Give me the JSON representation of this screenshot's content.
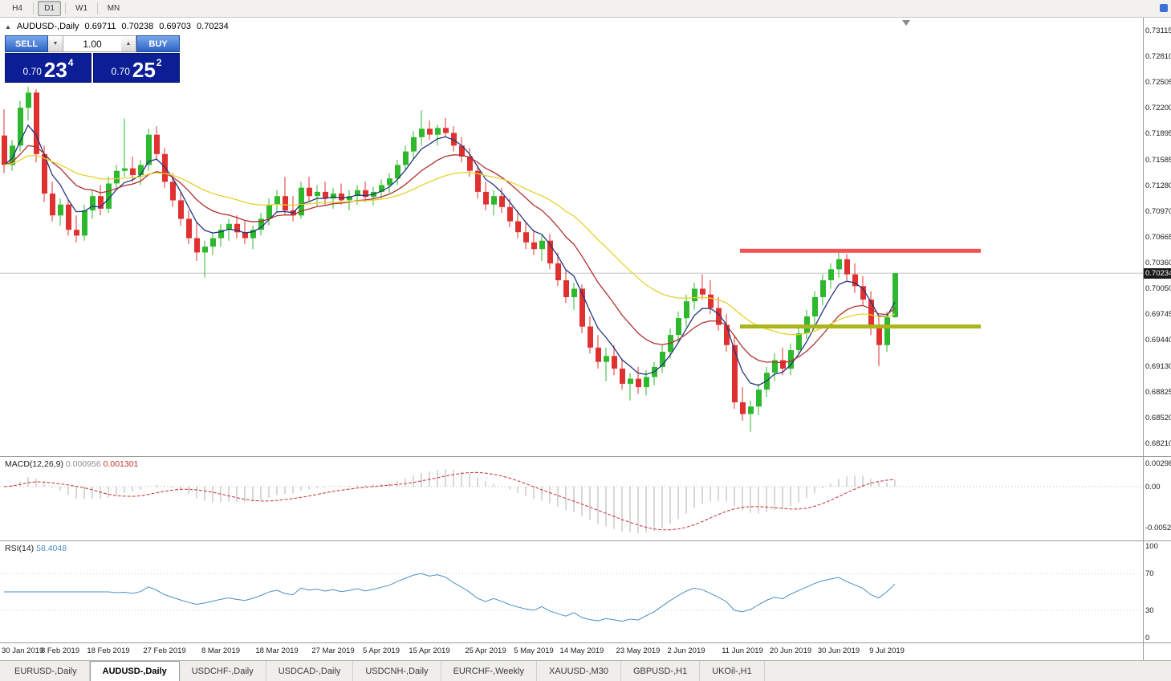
{
  "icons": {
    "collapse_arrow": "▲",
    "spinner_up": "▲",
    "spinner_down": "▼"
  },
  "toolbar": {
    "timeframes": [
      "H4",
      "D1",
      "W1",
      "MN"
    ],
    "active": "D1"
  },
  "chart": {
    "symbol": "AUDUSD-,Daily",
    "ohlc": {
      "open": "0.69711",
      "high": "0.70238",
      "low": "0.69703",
      "close": "0.70234"
    },
    "current_price": "0.70234",
    "price_axis": [
      "0.73115",
      "0.72810",
      "0.72505",
      "0.72200",
      "0.71895",
      "0.71585",
      "0.71280",
      "0.70970",
      "0.70665",
      "0.70360",
      "0.70050",
      "0.69745",
      "0.69440",
      "0.69130",
      "0.68825",
      "0.68520",
      "0.68210"
    ]
  },
  "trade_panel": {
    "sell_label": "SELL",
    "buy_label": "BUY",
    "volume": "1.00",
    "sell_price": {
      "small": "0.70",
      "big": "23",
      "sup": "4"
    },
    "buy_price": {
      "small": "0.70",
      "big": "25",
      "sup": "2"
    }
  },
  "chart_data": {
    "type": "candlestick",
    "symbol": "AUDUSD",
    "timeframe": "Daily",
    "x_offset": 5,
    "x_spacing": 10,
    "ylim": [
      0.6806,
      0.7327
    ],
    "colors": {
      "bull": "#2eb82e",
      "bear": "#e03131"
    },
    "candles": [
      [
        0.7187,
        0.7218,
        0.7142,
        0.7152
      ],
      [
        0.7152,
        0.7182,
        0.7145,
        0.7175
      ],
      [
        0.7175,
        0.7228,
        0.7168,
        0.722
      ],
      [
        0.722,
        0.7245,
        0.7205,
        0.7238
      ],
      [
        0.7238,
        0.7242,
        0.7155,
        0.7165
      ],
      [
        0.7165,
        0.7175,
        0.7108,
        0.7118
      ],
      [
        0.7118,
        0.7132,
        0.7085,
        0.7092
      ],
      [
        0.7092,
        0.7112,
        0.708,
        0.7105
      ],
      [
        0.7105,
        0.7112,
        0.7068,
        0.7075
      ],
      [
        0.7075,
        0.7092,
        0.706,
        0.7068
      ],
      [
        0.7068,
        0.7105,
        0.7062,
        0.7098
      ],
      [
        0.7098,
        0.7122,
        0.7088,
        0.7115
      ],
      [
        0.7115,
        0.7128,
        0.7092,
        0.71
      ],
      [
        0.71,
        0.7138,
        0.7095,
        0.713
      ],
      [
        0.713,
        0.7152,
        0.7122,
        0.7145
      ],
      [
        0.7145,
        0.7207,
        0.7138,
        0.7148
      ],
      [
        0.7148,
        0.7162,
        0.7132,
        0.714
      ],
      [
        0.714,
        0.7158,
        0.7128,
        0.7152
      ],
      [
        0.7152,
        0.7195,
        0.7145,
        0.7188
      ],
      [
        0.7188,
        0.7198,
        0.7158,
        0.7165
      ],
      [
        0.7165,
        0.7172,
        0.7125,
        0.7132
      ],
      [
        0.7132,
        0.7142,
        0.7102,
        0.711
      ],
      [
        0.711,
        0.712,
        0.708,
        0.7088
      ],
      [
        0.7088,
        0.7098,
        0.7058,
        0.7065
      ],
      [
        0.7065,
        0.7085,
        0.7038,
        0.7048
      ],
      [
        0.7048,
        0.7062,
        0.7018,
        0.7055
      ],
      [
        0.7055,
        0.7072,
        0.7045,
        0.7065
      ],
      [
        0.7065,
        0.7082,
        0.7055,
        0.7075
      ],
      [
        0.7075,
        0.7088,
        0.7062,
        0.7082
      ],
      [
        0.7082,
        0.7092,
        0.7065,
        0.7072
      ],
      [
        0.7072,
        0.7085,
        0.7058,
        0.7065
      ],
      [
        0.7065,
        0.708,
        0.7052,
        0.7075
      ],
      [
        0.7075,
        0.7095,
        0.7068,
        0.7088
      ],
      [
        0.7088,
        0.7112,
        0.708,
        0.7105
      ],
      [
        0.7105,
        0.7122,
        0.7095,
        0.7115
      ],
      [
        0.7115,
        0.7138,
        0.7092,
        0.7098
      ],
      [
        0.7098,
        0.7115,
        0.7085,
        0.7092
      ],
      [
        0.7092,
        0.7132,
        0.7088,
        0.7125
      ],
      [
        0.7125,
        0.7138,
        0.7108,
        0.7115
      ],
      [
        0.7115,
        0.7128,
        0.7102,
        0.712
      ],
      [
        0.712,
        0.7132,
        0.7105,
        0.7112
      ],
      [
        0.7112,
        0.7125,
        0.71,
        0.7118
      ],
      [
        0.7118,
        0.713,
        0.7105,
        0.711
      ],
      [
        0.711,
        0.7122,
        0.7098,
        0.7115
      ],
      [
        0.7115,
        0.7128,
        0.7105,
        0.7122
      ],
      [
        0.7122,
        0.7132,
        0.7108,
        0.7114
      ],
      [
        0.7114,
        0.7126,
        0.7104,
        0.712
      ],
      [
        0.712,
        0.7135,
        0.7112,
        0.7128
      ],
      [
        0.7128,
        0.7142,
        0.7118,
        0.7136
      ],
      [
        0.7136,
        0.7158,
        0.7128,
        0.7152
      ],
      [
        0.7152,
        0.7175,
        0.7145,
        0.7168
      ],
      [
        0.7168,
        0.7192,
        0.7158,
        0.7185
      ],
      [
        0.7185,
        0.7217,
        0.7175,
        0.7195
      ],
      [
        0.7195,
        0.7205,
        0.7182,
        0.7188
      ],
      [
        0.7188,
        0.72,
        0.7175,
        0.7196
      ],
      [
        0.7196,
        0.7208,
        0.7185,
        0.719
      ],
      [
        0.719,
        0.7198,
        0.7168,
        0.7175
      ],
      [
        0.7175,
        0.7185,
        0.7155,
        0.7162
      ],
      [
        0.7162,
        0.7172,
        0.7138,
        0.7145
      ],
      [
        0.7145,
        0.7152,
        0.7112,
        0.712
      ],
      [
        0.712,
        0.7132,
        0.7098,
        0.7105
      ],
      [
        0.7105,
        0.7122,
        0.7092,
        0.7115
      ],
      [
        0.7115,
        0.7125,
        0.7095,
        0.7102
      ],
      [
        0.7102,
        0.7112,
        0.7078,
        0.7085
      ],
      [
        0.7085,
        0.7098,
        0.7065,
        0.7072
      ],
      [
        0.7072,
        0.7085,
        0.7052,
        0.706
      ],
      [
        0.706,
        0.7075,
        0.7045,
        0.7052
      ],
      [
        0.7052,
        0.7068,
        0.7038,
        0.7062
      ],
      [
        0.7062,
        0.707,
        0.7028,
        0.7035
      ],
      [
        0.7035,
        0.7048,
        0.7008,
        0.7015
      ],
      [
        0.7015,
        0.7028,
        0.6988,
        0.6995
      ],
      [
        0.6995,
        0.7012,
        0.698,
        0.7005
      ],
      [
        0.7005,
        0.701,
        0.6952,
        0.696
      ],
      [
        0.696,
        0.6972,
        0.6928,
        0.6935
      ],
      [
        0.6935,
        0.695,
        0.691,
        0.6918
      ],
      [
        0.6918,
        0.6935,
        0.6895,
        0.6925
      ],
      [
        0.6925,
        0.6938,
        0.6902,
        0.691
      ],
      [
        0.691,
        0.6922,
        0.6885,
        0.6892
      ],
      [
        0.6892,
        0.6905,
        0.6872,
        0.6898
      ],
      [
        0.6898,
        0.6912,
        0.688,
        0.6888
      ],
      [
        0.6888,
        0.6908,
        0.6878,
        0.69
      ],
      [
        0.69,
        0.6918,
        0.689,
        0.6912
      ],
      [
        0.6912,
        0.6938,
        0.6905,
        0.693
      ],
      [
        0.693,
        0.6958,
        0.6922,
        0.695
      ],
      [
        0.695,
        0.6978,
        0.694,
        0.697
      ],
      [
        0.697,
        0.6998,
        0.696,
        0.699
      ],
      [
        0.699,
        0.7012,
        0.698,
        0.7005
      ],
      [
        0.7005,
        0.7022,
        0.6992,
        0.6998
      ],
      [
        0.6998,
        0.7015,
        0.6975,
        0.6982
      ],
      [
        0.6982,
        0.6995,
        0.6955,
        0.6962
      ],
      [
        0.6962,
        0.6975,
        0.693,
        0.6938
      ],
      [
        0.6938,
        0.695,
        0.6862,
        0.687
      ],
      [
        0.687,
        0.6888,
        0.6848,
        0.6856
      ],
      [
        0.6856,
        0.6872,
        0.6835,
        0.6865
      ],
      [
        0.6865,
        0.6892,
        0.6855,
        0.6885
      ],
      [
        0.6885,
        0.6912,
        0.6876,
        0.6905
      ],
      [
        0.6905,
        0.6928,
        0.6895,
        0.692
      ],
      [
        0.692,
        0.6935,
        0.6902,
        0.691
      ],
      [
        0.691,
        0.694,
        0.6902,
        0.6932
      ],
      [
        0.6932,
        0.696,
        0.6925,
        0.6952
      ],
      [
        0.6952,
        0.698,
        0.6945,
        0.6972
      ],
      [
        0.6972,
        0.7002,
        0.6962,
        0.6995
      ],
      [
        0.6995,
        0.7022,
        0.6985,
        0.7015
      ],
      [
        0.7015,
        0.7035,
        0.7005,
        0.7028
      ],
      [
        0.7028,
        0.7049,
        0.7018,
        0.704
      ],
      [
        0.704,
        0.7046,
        0.7015,
        0.7022
      ],
      [
        0.7022,
        0.7035,
        0.7,
        0.7008
      ],
      [
        0.7008,
        0.702,
        0.6985,
        0.6992
      ],
      [
        0.6992,
        0.7002,
        0.695,
        0.6958
      ],
      [
        0.6958,
        0.6972,
        0.6913,
        0.6938
      ],
      [
        0.6938,
        0.6978,
        0.693,
        0.6971
      ],
      [
        0.69711,
        0.70238,
        0.69703,
        0.70234
      ]
    ],
    "x_labels": [
      {
        "i": 0,
        "t": "30 Jan 2019"
      },
      {
        "i": 7,
        "t": "8 Feb 2019"
      },
      {
        "i": 13,
        "t": "18 Feb 2019"
      },
      {
        "i": 20,
        "t": "27 Feb 2019"
      },
      {
        "i": 27,
        "t": "8 Mar 2019"
      },
      {
        "i": 34,
        "t": "18 Mar 2019"
      },
      {
        "i": 41,
        "t": "27 Mar 2019"
      },
      {
        "i": 47,
        "t": "5 Apr 2019"
      },
      {
        "i": 53,
        "t": "15 Apr 2019"
      },
      {
        "i": 60,
        "t": "25 Apr 2019"
      },
      {
        "i": 66,
        "t": "5 May 2019"
      },
      {
        "i": 72,
        "t": "14 May 2019"
      },
      {
        "i": 79,
        "t": "23 May 2019"
      },
      {
        "i": 85,
        "t": "2 Jun 2019"
      },
      {
        "i": 92,
        "t": "11 Jun 2019"
      },
      {
        "i": 98,
        "t": "20 Jun 2019"
      },
      {
        "i": 104,
        "t": "30 Jun 2019"
      },
      {
        "i": 110,
        "t": "9 Jul 2019"
      }
    ],
    "overlays": {
      "resistance": {
        "price": 0.705,
        "from": 92,
        "to": 122,
        "color": "#f25252"
      },
      "support": {
        "price": 0.696,
        "from": 92,
        "to": 122,
        "color": "#abb41c"
      },
      "moving_averages": [
        {
          "period": 5,
          "color": "#22357e"
        },
        {
          "period": 13,
          "color": "#b03030"
        },
        {
          "period": 30,
          "color": "#e6d22e"
        }
      ]
    }
  },
  "macd": {
    "label": "MACD(12,26,9)",
    "main_value": "0.000956",
    "signal_value": "0.001301",
    "axis": [
      "0.002984",
      "0.00",
      "-0.00525"
    ],
    "ylim": [
      -0.0063,
      0.0032
    ],
    "fast": 12,
    "slow": 26,
    "signal": 9,
    "bar_color": "#b0b0b0",
    "signal_color": "#c83232"
  },
  "rsi": {
    "label": "RSI(14)",
    "value": "58.4048",
    "period": 14,
    "axis": [
      "100",
      "70",
      "30",
      "0"
    ],
    "levels": [
      70,
      30
    ],
    "line_color": "#4a8fc0",
    "level_color": "#c8c8e0"
  },
  "tabs": [
    {
      "label": "EURUSD-,Daily",
      "active": false
    },
    {
      "label": "AUDUSD-,Daily",
      "active": true
    },
    {
      "label": "USDCHF-,Daily",
      "active": false
    },
    {
      "label": "USDCAD-,Daily",
      "active": false
    },
    {
      "label": "USDCNH-,Daily",
      "active": false
    },
    {
      "label": "EURCHF-,Weekly",
      "active": false
    },
    {
      "label": "XAUUSD-,M30",
      "active": false
    },
    {
      "label": "GBPUSD-,H1",
      "active": false
    },
    {
      "label": "UKOil-,H1",
      "active": false
    }
  ]
}
